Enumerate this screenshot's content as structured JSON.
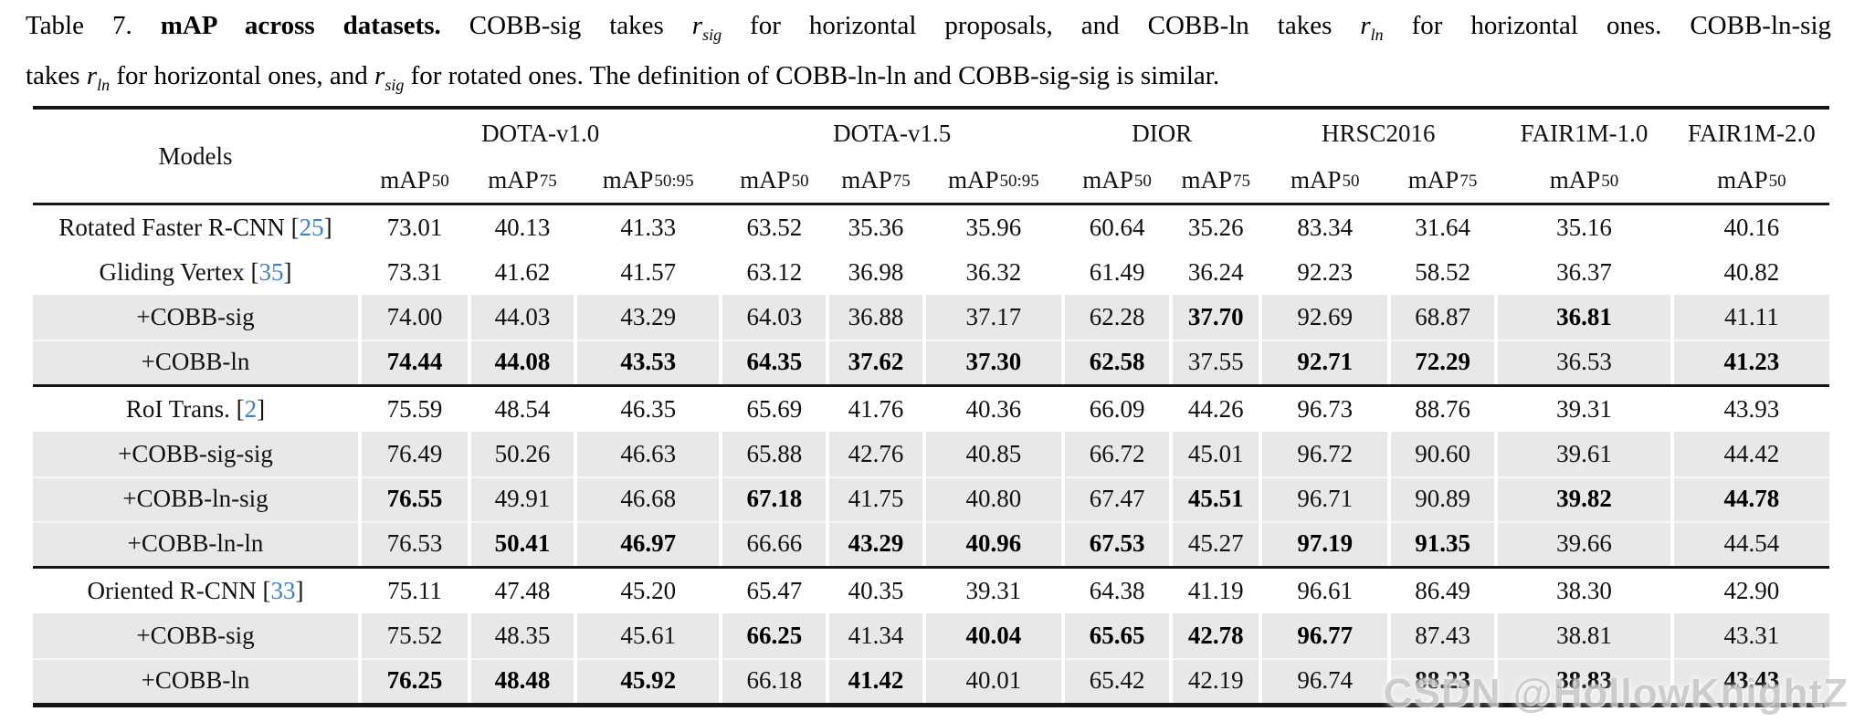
{
  "colors": {
    "cite": "#4080c8",
    "shaded_row": "#e8e8e8",
    "rule": "#151515",
    "watermark": "#c8c8c8"
  },
  "caption": {
    "lines": [
      [
        {
          "t": "Table 7. "
        },
        {
          "t": "mAP across datasets.",
          "bold": true
        },
        {
          "t": " COBB-sig takes "
        },
        {
          "math": "r",
          "sub": "sig"
        },
        {
          "t": " for horizontal proposals, and COBB-ln takes "
        },
        {
          "math": "r",
          "sub": "ln"
        },
        {
          "t": " for horizontal ones. COBB-ln-sig"
        }
      ],
      [
        {
          "t": "takes "
        },
        {
          "math": "r",
          "sub": "ln"
        },
        {
          "t": " for horizontal ones, and "
        },
        {
          "math": "r",
          "sub": "sig"
        },
        {
          "t": " for rotated ones. The definition of COBB-ln-ln and COBB-sig-sig is similar."
        }
      ]
    ]
  },
  "table": {
    "models_header": "Models",
    "cite_open": "[",
    "cite_close": "]",
    "groups": [
      {
        "label": "DOTA-v1.0",
        "span": 3
      },
      {
        "label": "DOTA-v1.5",
        "span": 3
      },
      {
        "label": "DIOR",
        "span": 2
      },
      {
        "label": "HRSC2016",
        "span": 2
      },
      {
        "label": "FAIR1M-1.0",
        "span": 1
      },
      {
        "label": "FAIR1M-2.0",
        "span": 1
      }
    ],
    "metrics": [
      {
        "base": "mAP",
        "sub": "50"
      },
      {
        "base": "mAP",
        "sub": "75"
      },
      {
        "base": "mAP",
        "sub": "50:95"
      },
      {
        "base": "mAP",
        "sub": "50"
      },
      {
        "base": "mAP",
        "sub": "75"
      },
      {
        "base": "mAP",
        "sub": "50:95"
      },
      {
        "base": "mAP",
        "sub": "50"
      },
      {
        "base": "mAP",
        "sub": "75"
      },
      {
        "base": "mAP",
        "sub": "50"
      },
      {
        "base": "mAP",
        "sub": "75"
      },
      {
        "base": "mAP",
        "sub": "50"
      },
      {
        "base": "mAP",
        "sub": "50"
      }
    ],
    "rows": [
      {
        "model": "Rotated Faster R-CNN",
        "cite": "25",
        "shaded": false,
        "group_start": false,
        "values": [
          "73.01",
          "40.13",
          "41.33",
          "63.52",
          "35.36",
          "35.96",
          "60.64",
          "35.26",
          "83.34",
          "31.64",
          "35.16",
          "40.16"
        ],
        "bold": [
          0,
          0,
          0,
          0,
          0,
          0,
          0,
          0,
          0,
          0,
          0,
          0
        ]
      },
      {
        "model": "Gliding Vertex",
        "cite": "35",
        "shaded": false,
        "group_start": false,
        "values": [
          "73.31",
          "41.62",
          "41.57",
          "63.12",
          "36.98",
          "36.32",
          "61.49",
          "36.24",
          "92.23",
          "58.52",
          "36.37",
          "40.82"
        ],
        "bold": [
          0,
          0,
          0,
          0,
          0,
          0,
          0,
          0,
          0,
          0,
          0,
          0
        ]
      },
      {
        "model": "+COBB-sig",
        "cite": null,
        "shaded": true,
        "group_start": false,
        "values": [
          "74.00",
          "44.03",
          "43.29",
          "64.03",
          "36.88",
          "37.17",
          "62.28",
          "37.70",
          "92.69",
          "68.87",
          "36.81",
          "41.11"
        ],
        "bold": [
          0,
          0,
          0,
          0,
          0,
          0,
          0,
          1,
          0,
          0,
          1,
          0
        ]
      },
      {
        "model": "+COBB-ln",
        "cite": null,
        "shaded": true,
        "group_start": false,
        "values": [
          "74.44",
          "44.08",
          "43.53",
          "64.35",
          "37.62",
          "37.30",
          "62.58",
          "37.55",
          "92.71",
          "72.29",
          "36.53",
          "41.23"
        ],
        "bold": [
          1,
          1,
          1,
          1,
          1,
          1,
          1,
          0,
          1,
          1,
          0,
          1
        ]
      },
      {
        "model": "RoI Trans.",
        "cite": "2",
        "shaded": false,
        "group_start": true,
        "values": [
          "75.59",
          "48.54",
          "46.35",
          "65.69",
          "41.76",
          "40.36",
          "66.09",
          "44.26",
          "96.73",
          "88.76",
          "39.31",
          "43.93"
        ],
        "bold": [
          0,
          0,
          0,
          0,
          0,
          0,
          0,
          0,
          0,
          0,
          0,
          0
        ]
      },
      {
        "model": "+COBB-sig-sig",
        "cite": null,
        "shaded": true,
        "group_start": false,
        "values": [
          "76.49",
          "50.26",
          "46.63",
          "65.88",
          "42.76",
          "40.85",
          "66.72",
          "45.01",
          "96.72",
          "90.60",
          "39.61",
          "44.42"
        ],
        "bold": [
          0,
          0,
          0,
          0,
          0,
          0,
          0,
          0,
          0,
          0,
          0,
          0
        ]
      },
      {
        "model": "+COBB-ln-sig",
        "cite": null,
        "shaded": true,
        "group_start": false,
        "values": [
          "76.55",
          "49.91",
          "46.68",
          "67.18",
          "41.75",
          "40.80",
          "67.47",
          "45.51",
          "96.71",
          "90.89",
          "39.82",
          "44.78"
        ],
        "bold": [
          1,
          0,
          0,
          1,
          0,
          0,
          0,
          1,
          0,
          0,
          1,
          1
        ]
      },
      {
        "model": "+COBB-ln-ln",
        "cite": null,
        "shaded": true,
        "group_start": false,
        "values": [
          "76.53",
          "50.41",
          "46.97",
          "66.66",
          "43.29",
          "40.96",
          "67.53",
          "45.27",
          "97.19",
          "91.35",
          "39.66",
          "44.54"
        ],
        "bold": [
          0,
          1,
          1,
          0,
          1,
          1,
          1,
          0,
          1,
          1,
          0,
          0
        ]
      },
      {
        "model": "Oriented R-CNN",
        "cite": "33",
        "shaded": false,
        "group_start": true,
        "values": [
          "75.11",
          "47.48",
          "45.20",
          "65.47",
          "40.35",
          "39.31",
          "64.38",
          "41.19",
          "96.61",
          "86.49",
          "38.30",
          "42.90"
        ],
        "bold": [
          0,
          0,
          0,
          0,
          0,
          0,
          0,
          0,
          0,
          0,
          0,
          0
        ]
      },
      {
        "model": "+COBB-sig",
        "cite": null,
        "shaded": true,
        "group_start": false,
        "values": [
          "75.52",
          "48.35",
          "45.61",
          "66.25",
          "41.34",
          "40.04",
          "65.65",
          "42.78",
          "96.77",
          "87.43",
          "38.81",
          "43.31"
        ],
        "bold": [
          0,
          0,
          0,
          1,
          0,
          1,
          1,
          1,
          1,
          0,
          0,
          0
        ]
      },
      {
        "model": "+COBB-ln",
        "cite": null,
        "shaded": true,
        "group_start": false,
        "values": [
          "76.25",
          "48.48",
          "45.92",
          "66.18",
          "41.42",
          "40.01",
          "65.42",
          "42.19",
          "96.74",
          "88.23",
          "38.83",
          "43.43"
        ],
        "bold": [
          1,
          1,
          1,
          0,
          1,
          0,
          0,
          0,
          0,
          1,
          1,
          1
        ]
      }
    ]
  },
  "watermark": "CSDN @HollowKnightZ"
}
